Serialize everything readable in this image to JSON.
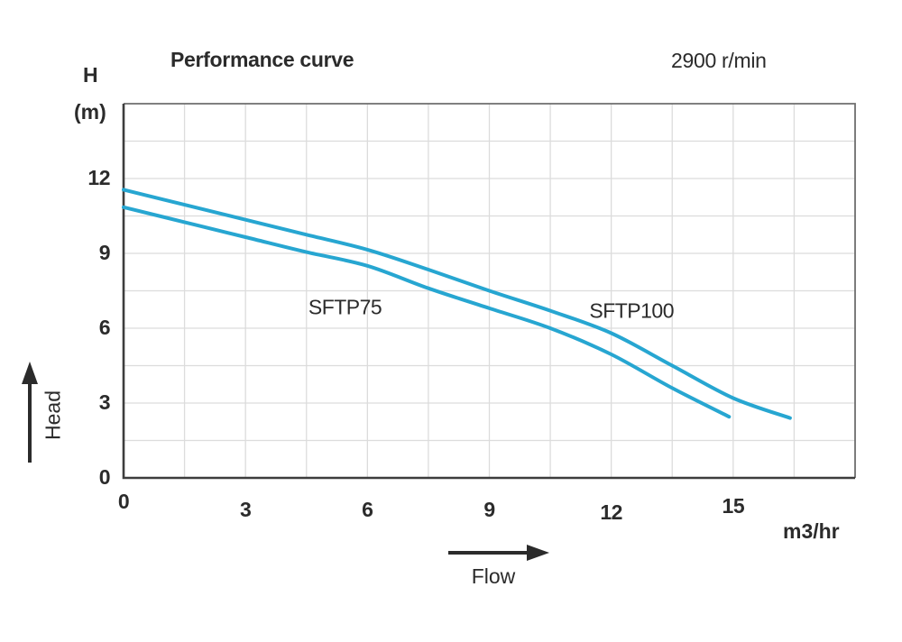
{
  "title": "Performance curve",
  "rpm_label": "2900 r/min",
  "y_axis": {
    "symbol": "H",
    "unit": "(m)",
    "arrow_label": "Head",
    "ticks": [
      0,
      3,
      6,
      9,
      12
    ]
  },
  "x_axis": {
    "unit_label": "m3/hr",
    "arrow_label": "Flow",
    "ticks": [
      0,
      3,
      6,
      9,
      12,
      15
    ]
  },
  "colors": {
    "curve": "#27a6d1",
    "grid": "#dcdcdc",
    "frame_dark": "#3d3d3d",
    "frame_light": "#6e6e6e",
    "text": "#2b2b2b"
  },
  "chart_data": {
    "type": "line",
    "title": "Performance curve",
    "annotation": "2900 r/min",
    "xlabel": "m3/hr (Flow)",
    "ylabel": "H (m) (Head)",
    "xlim": [
      0,
      18
    ],
    "ylim": [
      0,
      15
    ],
    "grid_step": 1.5,
    "grid": true,
    "legend_position": "inline-curve-labels",
    "series": [
      {
        "name": "SFTP75",
        "points": [
          [
            0,
            10.85
          ],
          [
            1.5,
            10.25
          ],
          [
            3,
            9.65
          ],
          [
            4.5,
            9.05
          ],
          [
            6,
            8.5
          ],
          [
            7.5,
            7.6
          ],
          [
            9,
            6.8
          ],
          [
            10.5,
            6.0
          ],
          [
            12,
            4.95
          ],
          [
            13.5,
            3.6
          ],
          [
            14.9,
            2.45
          ]
        ],
        "label_pos": [
          5.45,
          6.85
        ]
      },
      {
        "name": "SFTP100",
        "points": [
          [
            0,
            11.55
          ],
          [
            1.5,
            10.95
          ],
          [
            3,
            10.35
          ],
          [
            4.5,
            9.75
          ],
          [
            6,
            9.15
          ],
          [
            7.5,
            8.35
          ],
          [
            9,
            7.5
          ],
          [
            10.5,
            6.7
          ],
          [
            12,
            5.8
          ],
          [
            13.5,
            4.5
          ],
          [
            15,
            3.2
          ],
          [
            16.4,
            2.4
          ]
        ],
        "label_pos": [
          12.5,
          6.7
        ]
      }
    ]
  }
}
